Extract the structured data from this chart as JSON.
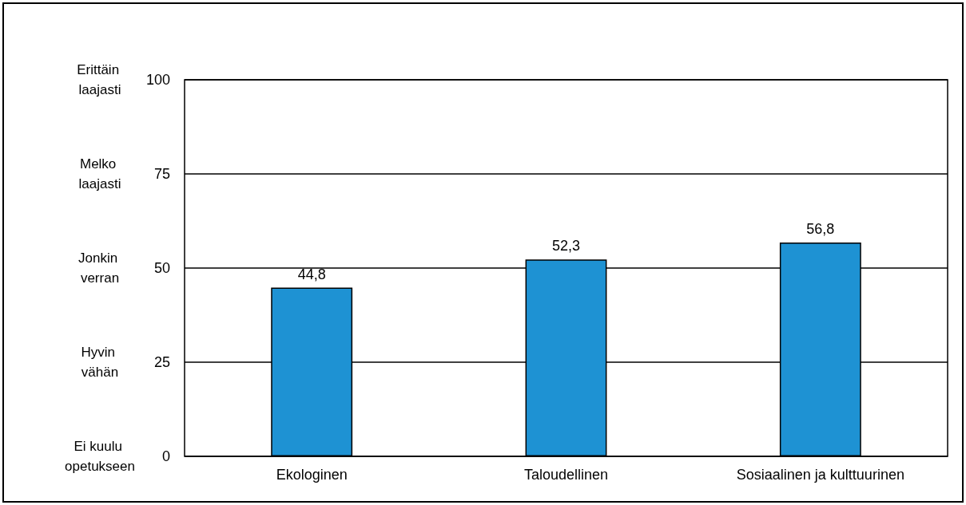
{
  "chart_data": {
    "type": "bar",
    "categories": [
      "Ekologinen",
      "Taloudellinen",
      "Sosiaalinen ja kulttuurinen"
    ],
    "values": [
      44.8,
      52.3,
      56.8
    ],
    "value_labels": [
      "44,8",
      "52,3",
      "56,8"
    ],
    "color": "#1e92d3",
    "ylim": [
      0,
      100
    ],
    "yticks": [
      0,
      25,
      50,
      75,
      100
    ],
    "annotations": [
      "Ei kuulu opetukseen",
      "Hyvin vähän",
      "Jonkin verran",
      "Melko laajasti",
      "Erittäin laajasti"
    ],
    "grid": "y"
  }
}
